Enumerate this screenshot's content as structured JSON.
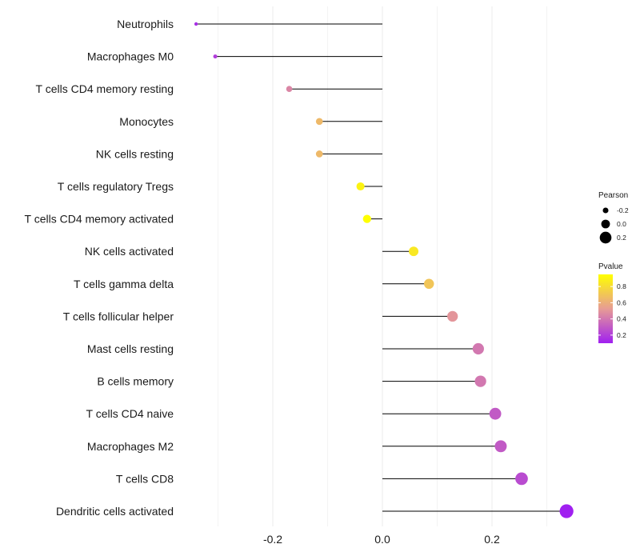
{
  "chart_data": {
    "type": "lollipop",
    "title": "",
    "xlabel": "",
    "ylabel": "",
    "xlim": [
      -0.34,
      0.33
    ],
    "x_ticks": [
      -0.2,
      0.0,
      0.2
    ],
    "x_tick_labels": [
      "-0.2",
      "0.0",
      "0.2"
    ],
    "grid": true,
    "categories": [
      "Neutrophils",
      "Macrophages M0",
      "T cells CD4 memory resting",
      "Monocytes",
      "NK cells resting",
      "T cells regulatory  Tregs",
      "T cells CD4 memory activated",
      "NK cells activated",
      "T cells gamma delta",
      "T cells follicular helper",
      "Mast cells resting",
      "B cells memory",
      "T cells CD4 naive",
      "Macrophages M2",
      "T cells CD8",
      "Dendritic cells activated"
    ],
    "pearson": [
      -0.34,
      -0.305,
      -0.17,
      -0.115,
      -0.115,
      -0.04,
      -0.028,
      0.057,
      0.085,
      0.128,
      0.175,
      0.179,
      0.206,
      0.216,
      0.254,
      0.336
    ],
    "pvalue": [
      0.15,
      0.2,
      0.45,
      0.65,
      0.65,
      0.9,
      0.95,
      0.85,
      0.7,
      0.5,
      0.4,
      0.4,
      0.3,
      0.3,
      0.25,
      0.1
    ],
    "legend_pearson": {
      "title": "Pearson",
      "values": [
        -0.2,
        0.0,
        0.2
      ],
      "labels": [
        "-0.2",
        "0.0",
        "0.2"
      ]
    },
    "legend_pvalue": {
      "title": "Pvalue",
      "range": [
        0.1,
        0.95
      ],
      "ticks": [
        0.8,
        0.6,
        0.4,
        0.2
      ],
      "tick_labels": [
        "0.8",
        "0.6",
        "0.4",
        "0.2"
      ],
      "color_low": "#a020f0",
      "color_mid": "#e79c95",
      "color_high": "#ffff00"
    },
    "stem_color": "#000000",
    "grid_color": "#ebebeb"
  }
}
